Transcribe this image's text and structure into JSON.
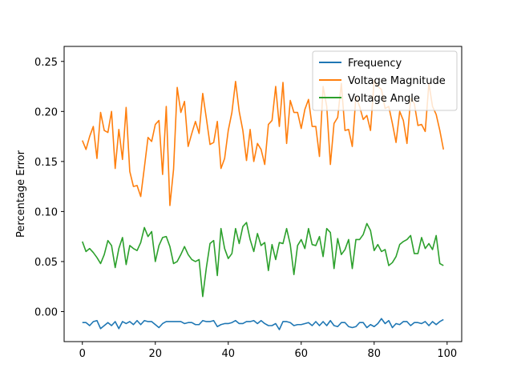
{
  "chart_data": {
    "type": "line",
    "title": "",
    "xlabel": "",
    "ylabel": "Percentage Error",
    "xlim": [
      -5,
      104
    ],
    "ylim": [
      -0.03,
      0.265
    ],
    "xticks": [
      0,
      20,
      40,
      60,
      80,
      100
    ],
    "yticks": [
      0.0,
      0.05,
      0.1,
      0.15,
      0.2,
      0.25
    ],
    "ytick_labels": [
      "0.00",
      "0.05",
      "0.10",
      "0.15",
      "0.20",
      "0.25"
    ],
    "grid": false,
    "legend_position": "top-right",
    "series": [
      {
        "name": "Frequency",
        "color": "#1f77b4",
        "values": [
          -0.011,
          -0.011,
          -0.014,
          -0.01,
          -0.009,
          -0.017,
          -0.014,
          -0.011,
          -0.014,
          -0.01,
          -0.017,
          -0.01,
          -0.012,
          -0.01,
          -0.013,
          -0.009,
          -0.013,
          -0.009,
          -0.01,
          -0.01,
          -0.013,
          -0.016,
          -0.012,
          -0.01,
          -0.01,
          -0.01,
          -0.01,
          -0.01,
          -0.012,
          -0.011,
          -0.011,
          -0.013,
          -0.013,
          -0.009,
          -0.01,
          -0.01,
          -0.009,
          -0.015,
          -0.013,
          -0.012,
          -0.012,
          -0.011,
          -0.009,
          -0.012,
          -0.012,
          -0.01,
          -0.01,
          -0.009,
          -0.012,
          -0.009,
          -0.012,
          -0.014,
          -0.014,
          -0.012,
          -0.018,
          -0.01,
          -0.01,
          -0.011,
          -0.014,
          -0.013,
          -0.013,
          -0.012,
          -0.011,
          -0.014,
          -0.01,
          -0.014,
          -0.01,
          -0.014,
          -0.009,
          -0.014,
          -0.015,
          -0.011,
          -0.011,
          -0.015,
          -0.016,
          -0.015,
          -0.011,
          -0.011,
          -0.016,
          -0.013,
          -0.015,
          -0.012,
          -0.007,
          -0.012,
          -0.009,
          -0.016,
          -0.012,
          -0.013,
          -0.01,
          -0.01,
          -0.014,
          -0.011,
          -0.011,
          -0.012,
          -0.01,
          -0.014,
          -0.01,
          -0.013,
          -0.01,
          -0.008
        ]
      },
      {
        "name": "Voltage Magnitude",
        "color": "#ff7f0e",
        "values": [
          0.171,
          0.162,
          0.175,
          0.185,
          0.153,
          0.199,
          0.181,
          0.179,
          0.2,
          0.143,
          0.182,
          0.152,
          0.204,
          0.14,
          0.125,
          0.126,
          0.115,
          0.144,
          0.174,
          0.17,
          0.187,
          0.191,
          0.137,
          0.205,
          0.106,
          0.142,
          0.224,
          0.199,
          0.21,
          0.165,
          0.178,
          0.19,
          0.178,
          0.218,
          0.193,
          0.167,
          0.169,
          0.19,
          0.143,
          0.153,
          0.181,
          0.199,
          0.23,
          0.2,
          0.181,
          0.151,
          0.182,
          0.15,
          0.168,
          0.162,
          0.147,
          0.187,
          0.191,
          0.225,
          0.185,
          0.229,
          0.168,
          0.211,
          0.199,
          0.199,
          0.183,
          0.202,
          0.212,
          0.185,
          0.185,
          0.155,
          0.225,
          0.205,
          0.147,
          0.188,
          0.194,
          0.228,
          0.181,
          0.182,
          0.165,
          0.215,
          0.205,
          0.192,
          0.196,
          0.181,
          0.231,
          0.225,
          0.222,
          0.203,
          0.205,
          0.188,
          0.169,
          0.2,
          0.191,
          0.168,
          0.213,
          0.208,
          0.186,
          0.187,
          0.18,
          0.228,
          0.205,
          0.197,
          0.181,
          0.162
        ]
      },
      {
        "name": "Voltage Angle",
        "color": "#2ca02c",
        "values": [
          0.07,
          0.06,
          0.063,
          0.059,
          0.054,
          0.048,
          0.057,
          0.071,
          0.066,
          0.044,
          0.063,
          0.074,
          0.047,
          0.066,
          0.063,
          0.061,
          0.069,
          0.084,
          0.075,
          0.08,
          0.05,
          0.066,
          0.074,
          0.075,
          0.065,
          0.048,
          0.05,
          0.057,
          0.065,
          0.057,
          0.052,
          0.05,
          0.052,
          0.015,
          0.044,
          0.068,
          0.071,
          0.036,
          0.083,
          0.063,
          0.053,
          0.058,
          0.083,
          0.068,
          0.085,
          0.089,
          0.072,
          0.06,
          0.078,
          0.066,
          0.069,
          0.041,
          0.067,
          0.052,
          0.069,
          0.068,
          0.083,
          0.067,
          0.037,
          0.066,
          0.072,
          0.063,
          0.083,
          0.067,
          0.066,
          0.075,
          0.055,
          0.083,
          0.079,
          0.043,
          0.073,
          0.057,
          0.062,
          0.072,
          0.043,
          0.072,
          0.072,
          0.077,
          0.088,
          0.081,
          0.061,
          0.067,
          0.06,
          0.062,
          0.046,
          0.049,
          0.055,
          0.067,
          0.07,
          0.072,
          0.076,
          0.058,
          0.058,
          0.074,
          0.063,
          0.068,
          0.062,
          0.076,
          0.048,
          0.046
        ]
      }
    ]
  }
}
